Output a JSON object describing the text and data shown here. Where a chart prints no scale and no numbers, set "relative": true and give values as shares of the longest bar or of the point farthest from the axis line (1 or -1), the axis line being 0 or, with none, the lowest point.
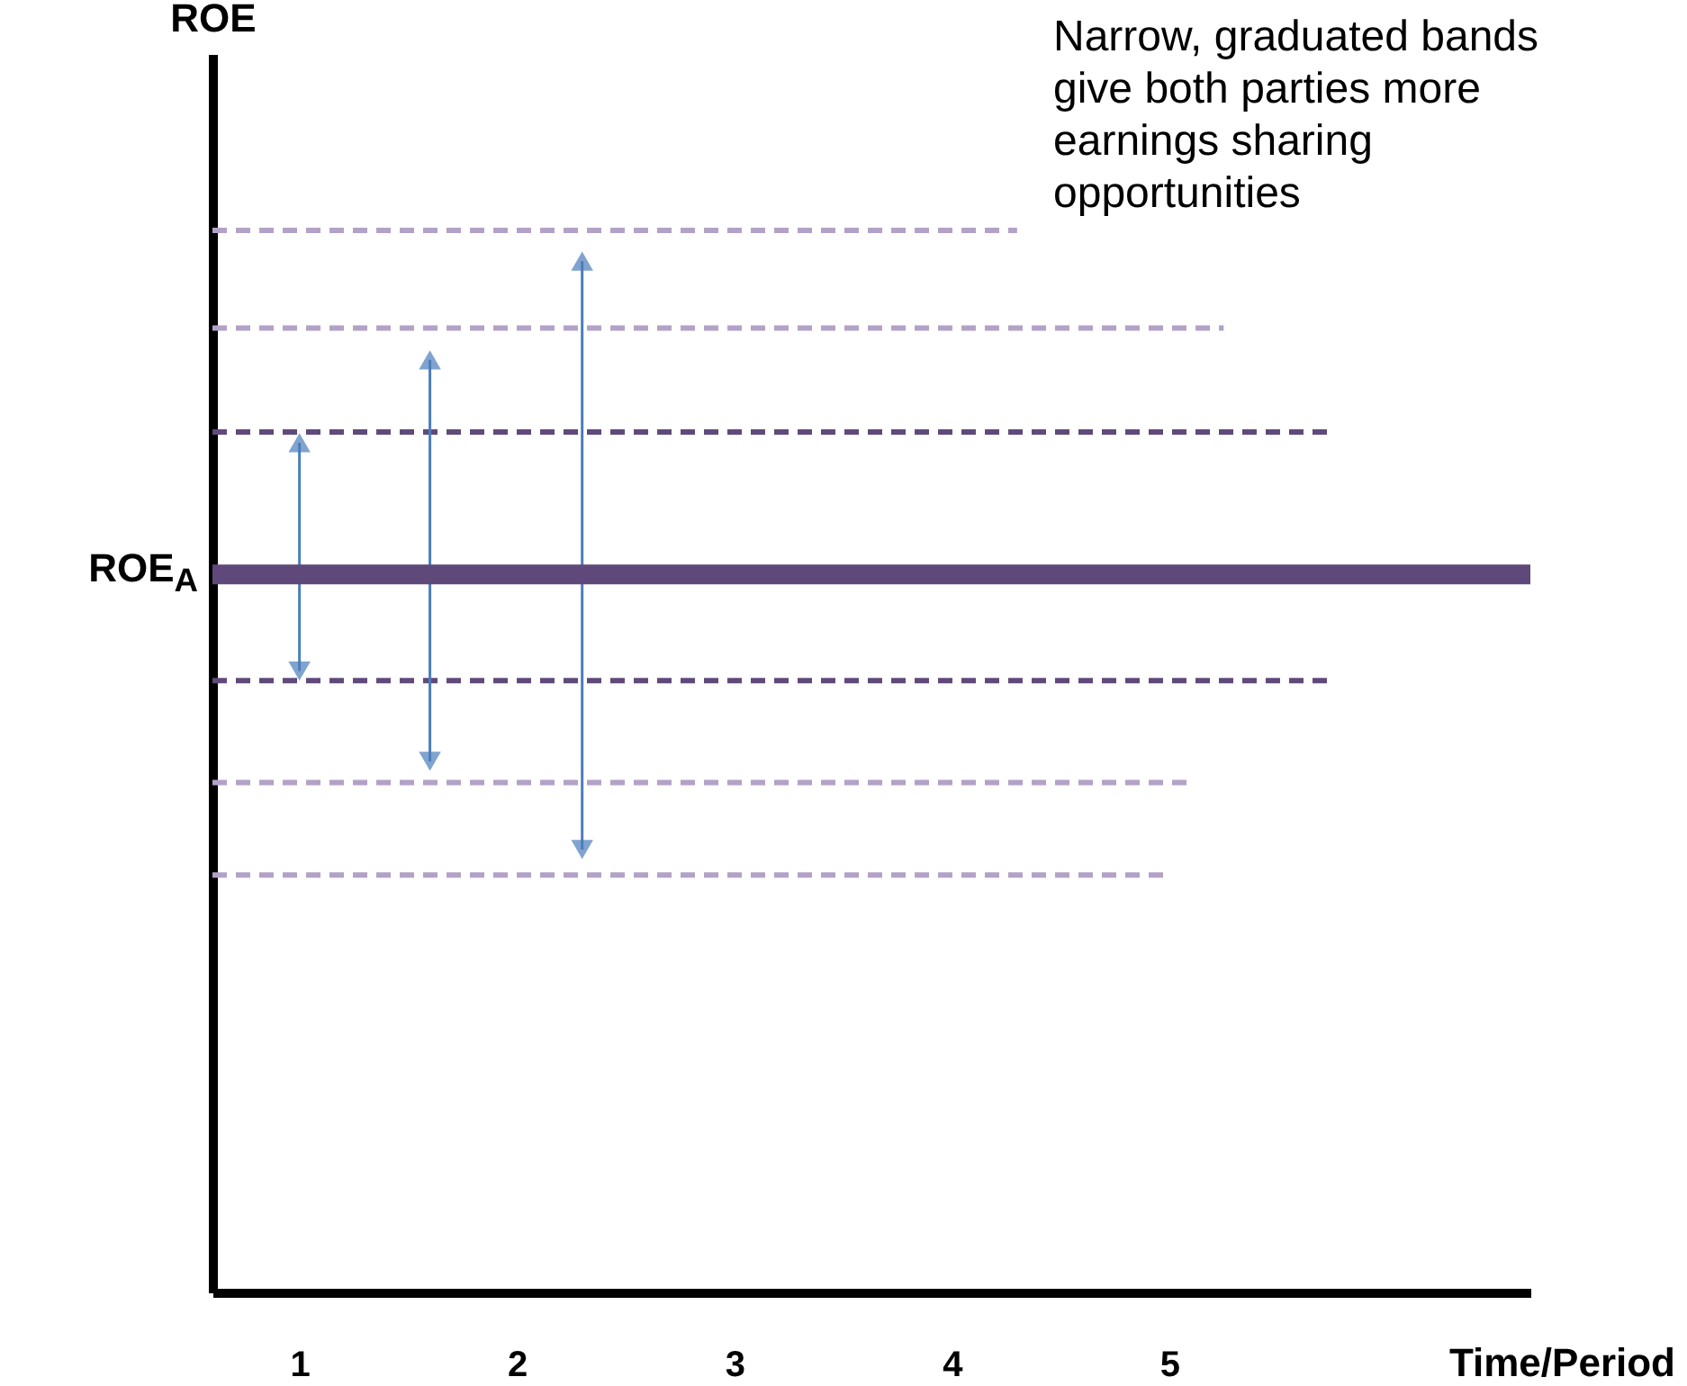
{
  "chart_data": {
    "type": "line",
    "relative": true,
    "ylabel": "ROE",
    "xlabel": "Time/Period",
    "annotations": [
      "Narrow, graduated bands give both parties more earnings sharing opportunities"
    ],
    "xlim": [
      0.6,
      6.66
    ],
    "xticks": [
      1,
      2,
      3,
      4,
      5
    ],
    "line_style": "dashed",
    "marker": "none",
    "grid": false,
    "series": [
      {
        "color": "#b3a2c7",
        "x": [
          0.6,
          4.3
        ],
        "values": [
          1,
          1
        ]
      },
      {
        "color": "#b3a2c7",
        "x": [
          0.6,
          5.25
        ],
        "values": [
          0.908,
          0.908
        ]
      },
      {
        "color": "#604a7b",
        "x": [
          0.6,
          5.75
        ],
        "values": [
          0.81,
          0.81
        ]
      },
      {
        "color": "#604a7b",
        "x": [
          0.6,
          5.75
        ],
        "values": [
          0.576,
          0.576
        ]
      },
      {
        "color": "#b3a2c7",
        "x": [
          0.6,
          5.1
        ],
        "values": [
          0.48,
          0.48
        ]
      },
      {
        "color": "#b3a2c7",
        "x": [
          0.6,
          5.0
        ],
        "values": [
          0.393,
          0.393
        ]
      },
      {
        "color": "#4a7ebb",
        "line_style": "solid",
        "marker": "triangle",
        "x": [
          1,
          1
        ],
        "values": [
          0.8,
          0.585
        ]
      },
      {
        "color": "#4a7ebb",
        "line_style": "solid",
        "marker": "triangle",
        "x": [
          1.6,
          1.6
        ],
        "values": [
          0.878,
          0.5
        ]
      },
      {
        "color": "#4a7ebb",
        "line_style": "solid",
        "marker": "triangle",
        "x": [
          2.3,
          2.3
        ],
        "values": [
          0.971,
          0.417
        ]
      }
    ],
    "ref_lines": [
      {
        "axis": "y",
        "value": 0.676,
        "label": "ROE$_{A}$",
        "color": "#5f497a",
        "line_style": "solid"
      }
    ]
  }
}
